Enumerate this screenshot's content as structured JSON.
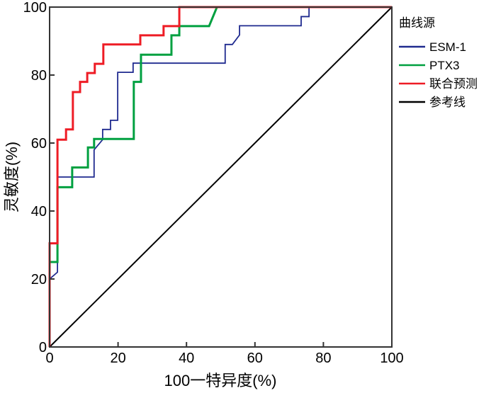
{
  "chart_data": {
    "type": "line",
    "xlabel": "100一特异度(%)",
    "ylabel": "灵敏度(%)",
    "xlim": [
      0,
      100
    ],
    "ylim": [
      0,
      100
    ],
    "xticks": [
      0,
      20,
      40,
      60,
      80,
      100
    ],
    "yticks": [
      0,
      20,
      40,
      60,
      80,
      100
    ],
    "grid": false,
    "legend": {
      "title": "曲线源",
      "placement": "right"
    },
    "series": [
      {
        "name": "ESM-1",
        "color": "#1f2a8f",
        "points": [
          [
            0,
            0
          ],
          [
            0,
            20
          ],
          [
            2.3,
            22
          ],
          [
            2.3,
            50
          ],
          [
            13,
            50
          ],
          [
            13,
            58
          ],
          [
            15.5,
            61
          ],
          [
            15.5,
            64
          ],
          [
            17.8,
            64
          ],
          [
            17.8,
            66.7
          ],
          [
            19.9,
            66.7
          ],
          [
            19.9,
            80.8
          ],
          [
            24.4,
            80.8
          ],
          [
            24.4,
            83.5
          ],
          [
            51.3,
            83.5
          ],
          [
            51.3,
            89
          ],
          [
            53.4,
            89
          ],
          [
            55.5,
            91.8
          ],
          [
            55.5,
            94.5
          ],
          [
            73.5,
            94.5
          ],
          [
            73.5,
            97.2
          ],
          [
            75.8,
            97.2
          ],
          [
            75.8,
            100
          ],
          [
            100,
            100
          ]
        ]
      },
      {
        "name": "PTX3",
        "color": "#00a040",
        "points": [
          [
            0,
            0
          ],
          [
            0,
            25
          ],
          [
            2.3,
            25
          ],
          [
            2.3,
            47
          ],
          [
            6.6,
            47
          ],
          [
            6.6,
            52.8
          ],
          [
            11.2,
            52.8
          ],
          [
            11.2,
            58.7
          ],
          [
            13,
            58.7
          ],
          [
            13,
            61.2
          ],
          [
            24.6,
            61.2
          ],
          [
            24.6,
            78
          ],
          [
            26.7,
            78
          ],
          [
            26.7,
            86
          ],
          [
            35.6,
            86
          ],
          [
            35.6,
            91.7
          ],
          [
            37.9,
            91.7
          ],
          [
            37.9,
            94.4
          ],
          [
            46.6,
            94.4
          ],
          [
            48.9,
            100
          ],
          [
            100,
            100
          ]
        ]
      },
      {
        "name": "联合预测",
        "color": "#ee1c25",
        "points": [
          [
            0,
            0
          ],
          [
            0,
            30.5
          ],
          [
            2.3,
            30.5
          ],
          [
            2.3,
            61
          ],
          [
            4.8,
            61
          ],
          [
            4.8,
            64
          ],
          [
            6.8,
            64
          ],
          [
            6.8,
            75
          ],
          [
            8.9,
            75
          ],
          [
            8.9,
            78
          ],
          [
            11,
            78
          ],
          [
            11,
            80.6
          ],
          [
            13.2,
            80.6
          ],
          [
            13.2,
            83.3
          ],
          [
            15.7,
            83.3
          ],
          [
            15.7,
            89
          ],
          [
            26.5,
            89
          ],
          [
            26.5,
            91.7
          ],
          [
            33.3,
            91.7
          ],
          [
            33.3,
            94.4
          ],
          [
            37.9,
            94.4
          ],
          [
            37.9,
            100
          ],
          [
            100,
            100
          ]
        ]
      },
      {
        "name": "参考线",
        "color": "#000000",
        "points": [
          [
            0,
            0
          ],
          [
            100,
            100
          ]
        ]
      }
    ]
  }
}
